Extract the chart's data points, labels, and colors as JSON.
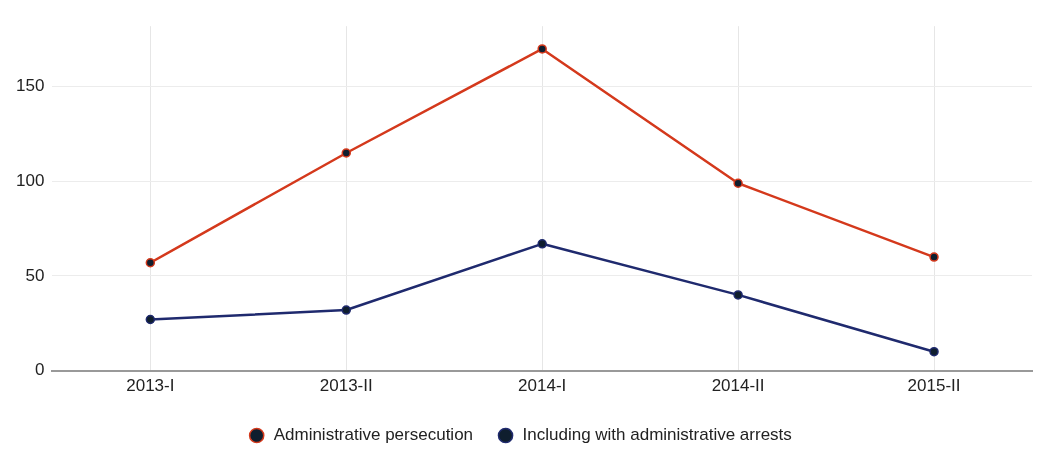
{
  "chart_data": {
    "type": "line",
    "categories": [
      "2013-I",
      "2013-II",
      "2014-I",
      "2014-II",
      "2015-II"
    ],
    "series": [
      {
        "name": "Administrative persecution",
        "color": "#d4391c",
        "values": [
          57,
          115,
          170,
          99,
          60
        ]
      },
      {
        "name": "Including with administrative arrests",
        "color": "#1f2a6e",
        "values": [
          27,
          32,
          67,
          40,
          10
        ]
      }
    ],
    "ylim": [
      0,
      182
    ],
    "yticks": [
      0,
      50,
      100,
      150
    ],
    "grid": true,
    "legend": "bottom",
    "marker": "circle",
    "line_style": "solid"
  }
}
